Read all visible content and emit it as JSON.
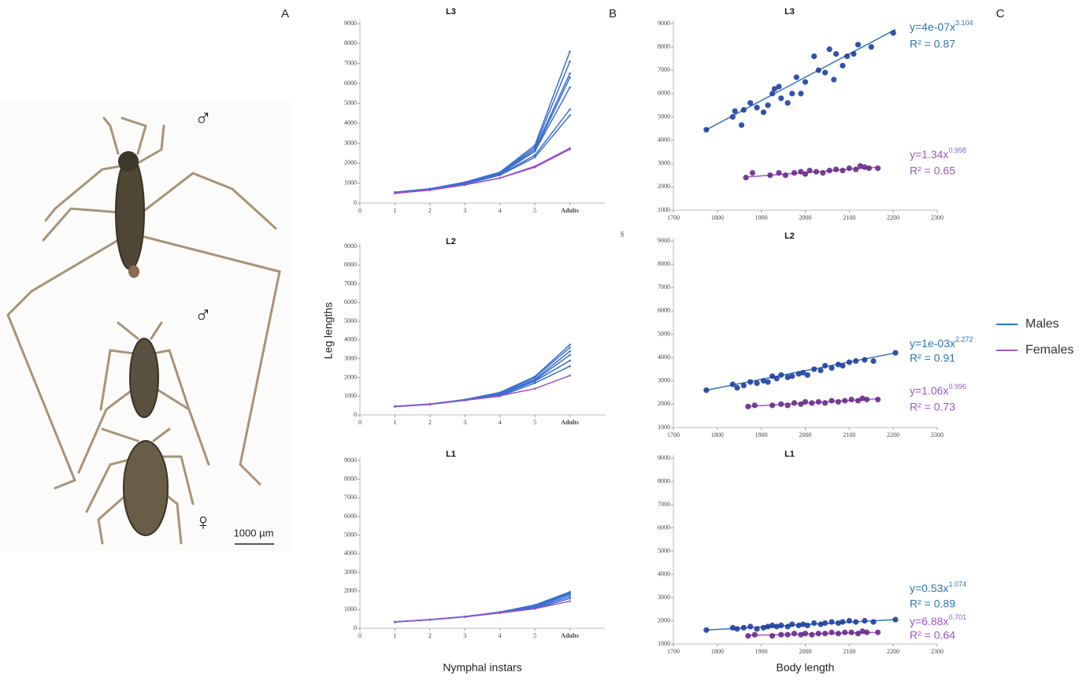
{
  "panel_labels": [
    "A",
    "B",
    "C"
  ],
  "stray_mark": "§",
  "photo": {
    "symbols": [
      "♂",
      "♂",
      "♀"
    ],
    "scale_bar": "1000 µm"
  },
  "legend": [
    {
      "name": "Males",
      "color": "#2e75b6"
    },
    {
      "name": "Females",
      "color": "#9b59c6"
    }
  ],
  "chart_data": [
    {
      "type": "line",
      "title": "L3",
      "x": [
        1,
        2,
        3,
        4,
        5,
        6
      ],
      "xlim": [
        0,
        7
      ],
      "xticks": [
        0,
        1,
        2,
        3,
        4,
        5,
        {
          "value": 6,
          "label": "Adults"
        }
      ],
      "ylim": [
        0,
        9000
      ],
      "yticks": [
        0,
        1000,
        2000,
        3000,
        4000,
        5000,
        6000,
        7000,
        8000,
        9000
      ],
      "series": [
        {
          "color": "#3b6fd0",
          "values": [
            550,
            720,
            1050,
            1550,
            2900,
            7600
          ]
        },
        {
          "color": "#3b6fd0",
          "values": [
            540,
            710,
            1030,
            1520,
            2800,
            7100
          ]
        },
        {
          "color": "#3b6fd0",
          "values": [
            530,
            700,
            1010,
            1500,
            2700,
            6500
          ]
        },
        {
          "color": "#3b6fd0",
          "values": [
            530,
            700,
            1000,
            1480,
            2600,
            6300
          ]
        },
        {
          "color": "#3b6fd0",
          "values": [
            520,
            690,
            990,
            1450,
            2600,
            5800
          ]
        },
        {
          "color": "#3b6fd0",
          "values": [
            510,
            680,
            970,
            1420,
            2400,
            4700
          ]
        },
        {
          "color": "#3b6fd0",
          "values": [
            500,
            670,
            950,
            1400,
            2300,
            4400
          ]
        },
        {
          "color": "#9b4fc9",
          "values": [
            500,
            660,
            920,
            1260,
            1850,
            2750
          ]
        },
        {
          "color": "#9b4fc9",
          "values": [
            490,
            650,
            910,
            1250,
            1800,
            2700
          ]
        }
      ]
    },
    {
      "type": "line",
      "title": "L2",
      "ylabel": "Leg lengths",
      "x": [
        1,
        2,
        3,
        4,
        5,
        6
      ],
      "xlim": [
        0,
        7
      ],
      "xticks": [
        0,
        1,
        2,
        3,
        4,
        5,
        {
          "value": 6,
          "label": "Adults"
        }
      ],
      "ylim": [
        0,
        9000
      ],
      "yticks": [
        0,
        1000,
        2000,
        3000,
        4000,
        5000,
        6000,
        7000,
        8000,
        9000
      ],
      "series": [
        {
          "color": "#3b6fd0",
          "values": [
            460,
            580,
            820,
            1200,
            2050,
            3750
          ]
        },
        {
          "color": "#3b6fd0",
          "values": [
            455,
            575,
            810,
            1150,
            2000,
            3600
          ]
        },
        {
          "color": "#3b6fd0",
          "values": [
            450,
            570,
            800,
            1100,
            1900,
            3400
          ]
        },
        {
          "color": "#3b6fd0",
          "values": [
            450,
            570,
            800,
            1100,
            1850,
            3200
          ]
        },
        {
          "color": "#3b6fd0",
          "values": [
            445,
            565,
            790,
            1050,
            1800,
            2900
          ]
        },
        {
          "color": "#3b6fd0",
          "values": [
            440,
            560,
            780,
            1000,
            1700,
            2600
          ]
        },
        {
          "color": "#9b4fc9",
          "values": [
            450,
            560,
            780,
            1020,
            1400,
            2100
          ]
        }
      ]
    },
    {
      "type": "line",
      "title": "L1",
      "xlabel": "Nymphal instars",
      "x": [
        1,
        2,
        3,
        4,
        5,
        6
      ],
      "xlim": [
        0,
        7
      ],
      "xticks": [
        0,
        1,
        2,
        3,
        4,
        5,
        {
          "value": 6,
          "label": "Adults"
        }
      ],
      "ylim": [
        0,
        9000
      ],
      "yticks": [
        0,
        1000,
        2000,
        3000,
        4000,
        5000,
        6000,
        7000,
        8000,
        9000
      ],
      "series": [
        {
          "color": "#3b6fd0",
          "values": [
            345,
            465,
            630,
            870,
            1250,
            1950
          ]
        },
        {
          "color": "#3b6fd0",
          "values": [
            342,
            462,
            625,
            860,
            1200,
            1900
          ]
        },
        {
          "color": "#3b6fd0",
          "values": [
            340,
            460,
            620,
            850,
            1180,
            1850
          ]
        },
        {
          "color": "#3b6fd0",
          "values": [
            340,
            460,
            620,
            850,
            1150,
            1800
          ]
        },
        {
          "color": "#3b6fd0",
          "values": [
            338,
            458,
            615,
            840,
            1100,
            1700
          ]
        },
        {
          "color": "#3b6fd0",
          "values": [
            335,
            455,
            610,
            830,
            1050,
            1600
          ]
        },
        {
          "color": "#9b4fc9",
          "values": [
            340,
            460,
            620,
            820,
            1050,
            1450
          ]
        }
      ]
    },
    {
      "type": "scatter",
      "title": "L3",
      "xlim": [
        1700,
        2300
      ],
      "xticks": [
        1700,
        1800,
        1900,
        2000,
        2100,
        2200,
        2300
      ],
      "ylim": [
        1000,
        9000
      ],
      "yticks": [
        1000,
        2000,
        3000,
        4000,
        5000,
        6000,
        7000,
        8000,
        9000
      ],
      "series": [
        {
          "color": "#2e75b6",
          "marker_color": "#1f3f9f",
          "x": [
            1775,
            1835,
            1840,
            1855,
            1860,
            1875,
            1890,
            1905,
            1915,
            1925,
            1930,
            1940,
            1945,
            1960,
            1970,
            1980,
            1990,
            2000,
            2020,
            2030,
            2045,
            2055,
            2065,
            2070,
            2085,
            2095,
            2110,
            2120,
            2150,
            2200
          ],
          "values": [
            4450,
            5000,
            5250,
            4650,
            5300,
            5600,
            5400,
            5200,
            5500,
            6000,
            6200,
            6300,
            5800,
            5600,
            6000,
            6700,
            6000,
            6500,
            7600,
            7000,
            6900,
            7900,
            6600,
            7700,
            7200,
            7600,
            7700,
            8100,
            8000,
            8600
          ],
          "fit_x": [
            1775,
            2205
          ],
          "fit_y": [
            4450,
            8750
          ],
          "equation": "y=4e-07x",
          "exponent": "3.104",
          "r2": "R² = 0.87"
        },
        {
          "color": "#9b59c6",
          "marker_color": "#6a2a8a",
          "x": [
            1865,
            1880,
            1920,
            1940,
            1955,
            1975,
            1990,
            2000,
            2010,
            2025,
            2040,
            2055,
            2070,
            2085,
            2100,
            2115,
            2125,
            2135,
            2145,
            2165
          ],
          "values": [
            2400,
            2600,
            2500,
            2600,
            2500,
            2600,
            2650,
            2550,
            2700,
            2650,
            2600,
            2700,
            2750,
            2700,
            2800,
            2750,
            2900,
            2850,
            2800,
            2800
          ],
          "fit_x": [
            1865,
            2165
          ],
          "fit_y": [
            2420,
            2850
          ],
          "equation": "y=1.34x",
          "exponent": "0.998",
          "r2": "R² = 0.65"
        }
      ]
    },
    {
      "type": "scatter",
      "title": "L2",
      "xlim": [
        1700,
        2300
      ],
      "xticks": [
        1700,
        1800,
        1900,
        2000,
        2100,
        2200,
        2300
      ],
      "ylim": [
        1000,
        9000
      ],
      "yticks": [
        1000,
        2000,
        3000,
        4000,
        5000,
        6000,
        7000,
        8000,
        9000
      ],
      "series": [
        {
          "color": "#2e75b6",
          "marker_color": "#1f3f9f",
          "x": [
            1775,
            1835,
            1845,
            1860,
            1875,
            1890,
            1905,
            1915,
            1925,
            1935,
            1945,
            1960,
            1970,
            1985,
            1995,
            2005,
            2020,
            2035,
            2045,
            2060,
            2075,
            2085,
            2100,
            2115,
            2135,
            2155,
            2205
          ],
          "values": [
            2600,
            2850,
            2700,
            2800,
            2950,
            2900,
            3000,
            2950,
            3200,
            3100,
            3250,
            3150,
            3200,
            3300,
            3350,
            3250,
            3500,
            3450,
            3650,
            3550,
            3700,
            3650,
            3800,
            3850,
            3900,
            3850,
            4200
          ],
          "fit_x": [
            1775,
            2205
          ],
          "fit_y": [
            2600,
            4200
          ],
          "equation": "y=1e-03x",
          "exponent": "2.272",
          "r2": "R² = 0.91"
        },
        {
          "color": "#9b59c6",
          "marker_color": "#6a2a8a",
          "x": [
            1870,
            1885,
            1925,
            1945,
            1960,
            1975,
            1990,
            2000,
            2015,
            2030,
            2045,
            2060,
            2075,
            2090,
            2105,
            2120,
            2130,
            2140,
            2165
          ],
          "values": [
            1900,
            1950,
            1950,
            2000,
            1950,
            2050,
            2000,
            2100,
            2050,
            2100,
            2050,
            2150,
            2100,
            2150,
            2200,
            2150,
            2250,
            2200,
            2200
          ],
          "fit_x": [
            1865,
            2165
          ],
          "fit_y": [
            1900,
            2230
          ],
          "equation": "y=1.06x",
          "exponent": "0.996",
          "r2": "R² = 0.73"
        }
      ]
    },
    {
      "type": "scatter",
      "title": "L1",
      "xlabel": "Body length",
      "xlim": [
        1700,
        2300
      ],
      "xticks": [
        1700,
        1800,
        1900,
        2000,
        2100,
        2200,
        2300
      ],
      "ylim": [
        1000,
        9000
      ],
      "yticks": [
        1000,
        2000,
        3000,
        4000,
        5000,
        6000,
        7000,
        8000,
        9000
      ],
      "series": [
        {
          "color": "#2e75b6",
          "marker_color": "#1f3f9f",
          "x": [
            1775,
            1835,
            1845,
            1860,
            1875,
            1890,
            1905,
            1915,
            1925,
            1935,
            1945,
            1960,
            1970,
            1985,
            1995,
            2005,
            2020,
            2035,
            2045,
            2060,
            2075,
            2085,
            2100,
            2115,
            2135,
            2155,
            2205
          ],
          "values": [
            1600,
            1700,
            1650,
            1700,
            1750,
            1650,
            1700,
            1750,
            1800,
            1750,
            1800,
            1750,
            1850,
            1800,
            1850,
            1800,
            1900,
            1850,
            1900,
            1950,
            1900,
            1950,
            2000,
            1950,
            2000,
            1950,
            2050
          ],
          "fit_x": [
            1775,
            2205
          ],
          "fit_y": [
            1600,
            2050
          ],
          "equation": "y=0.53x",
          "exponent": "1.074",
          "r2": "R² = 0.89"
        },
        {
          "color": "#9b59c6",
          "marker_color": "#6a2a8a",
          "x": [
            1870,
            1885,
            1925,
            1945,
            1960,
            1975,
            1990,
            2000,
            2015,
            2030,
            2045,
            2060,
            2075,
            2090,
            2105,
            2120,
            2130,
            2140,
            2165
          ],
          "values": [
            1350,
            1400,
            1350,
            1400,
            1400,
            1450,
            1400,
            1450,
            1400,
            1450,
            1450,
            1500,
            1450,
            1500,
            1500,
            1450,
            1550,
            1500,
            1500
          ],
          "fit_x": [
            1865,
            2165
          ],
          "fit_y": [
            1370,
            1500
          ],
          "equation": "y=6.88x",
          "exponent": "0.701",
          "r2": "R² = 0.64"
        }
      ]
    }
  ]
}
